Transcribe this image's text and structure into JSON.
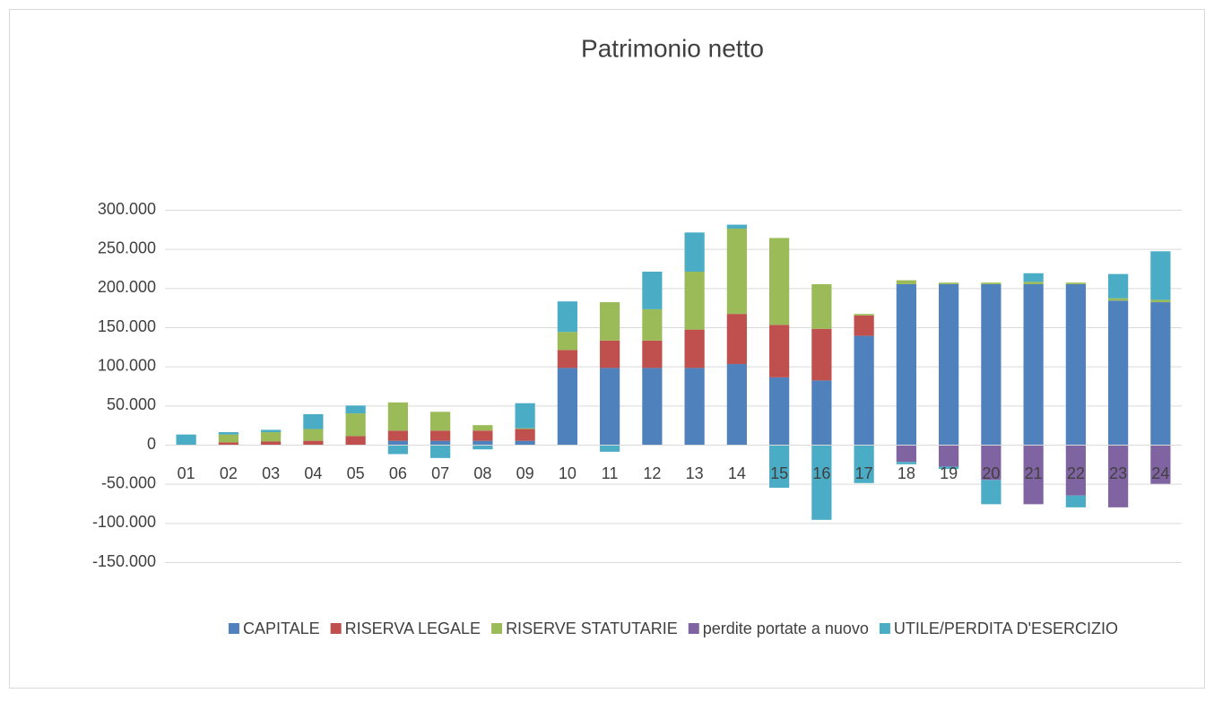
{
  "chart_data": {
    "type": "stacked_bar",
    "title": "Patrimonio netto",
    "categories": [
      "01",
      "02",
      "03",
      "04",
      "05",
      "06",
      "07",
      "08",
      "09",
      "10",
      "11",
      "12",
      "13",
      "14",
      "15",
      "16",
      "17",
      "18",
      "19",
      "20",
      "21",
      "22",
      "23",
      "24"
    ],
    "series": [
      {
        "name": "CAPITALE",
        "color": "#4f81bd",
        "values": [
          0,
          0,
          0,
          0,
          0,
          5000,
          5000,
          5000,
          5000,
          98000,
          98000,
          98000,
          98000,
          103000,
          86000,
          82000,
          139000,
          205000,
          205000,
          205000,
          205000,
          205000,
          184000,
          182000
        ]
      },
      {
        "name": "RISERVA LEGALE",
        "color": "#c0504d",
        "values": [
          0,
          3000,
          4000,
          5000,
          11000,
          13000,
          13000,
          13000,
          15000,
          23000,
          35000,
          35000,
          49000,
          64000,
          67000,
          66000,
          26000,
          0,
          0,
          0,
          0,
          0,
          0,
          0
        ]
      },
      {
        "name": "RISERVE STATUTARIE",
        "color": "#9bbb59",
        "values": [
          0,
          10000,
          12000,
          15000,
          29000,
          36000,
          24000,
          7000,
          1000,
          23000,
          49000,
          40000,
          74000,
          109000,
          111000,
          57000,
          2000,
          5000,
          2000,
          2000,
          3000,
          2000,
          3000,
          3000
        ]
      },
      {
        "name": "perdite portate a nuovo",
        "color": "#8064a2",
        "values": [
          0,
          0,
          0,
          0,
          0,
          0,
          0,
          0,
          0,
          0,
          0,
          0,
          0,
          0,
          0,
          0,
          0,
          -22000,
          -28000,
          -45000,
          -76000,
          -65000,
          -80000,
          -50000
        ]
      },
      {
        "name": "UTILE/PERDITA D'ESERCIZIO",
        "color": "#4bacc6",
        "values": [
          13000,
          3000,
          3000,
          19000,
          10000,
          -12000,
          -17000,
          -6000,
          32000,
          39000,
          -9000,
          48000,
          50000,
          5000,
          -55000,
          -96000,
          -49000,
          -3000,
          -3000,
          -31000,
          11000,
          -15000,
          31000,
          62000
        ]
      }
    ],
    "ylim": [
      -150000,
      300000
    ],
    "yticks": [
      {
        "value": -150000,
        "label": "-150.000"
      },
      {
        "value": -100000,
        "label": "-100.000"
      },
      {
        "value": -50000,
        "label": "-50.000"
      },
      0,
      {
        "value": 50000,
        "label": "50.000"
      },
      {
        "value": 100000,
        "label": "100.000"
      },
      {
        "value": 150000,
        "label": "150.000"
      },
      {
        "value": 200000,
        "label": "200.000"
      },
      {
        "value": 250000,
        "label": "250.000"
      },
      {
        "value": 300000,
        "label": "300.000"
      }
    ],
    "grid": true,
    "legend": "bottom"
  }
}
